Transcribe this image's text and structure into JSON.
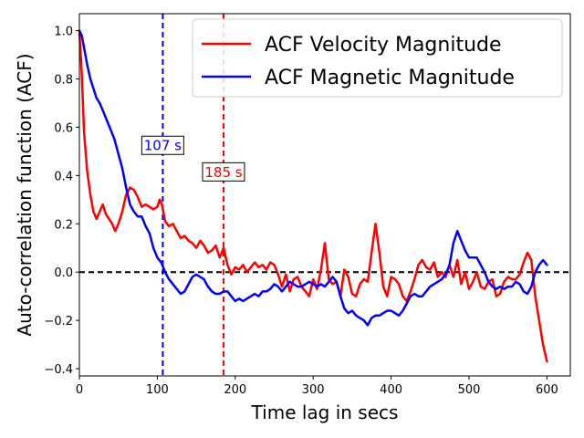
{
  "chart_data": {
    "type": "line",
    "xlabel": "Time lag in secs",
    "ylabel": "Auto-correlation function (ACF)",
    "xlim": [
      0,
      630
    ],
    "ylim": [
      -0.43,
      1.07
    ],
    "x_ticks": [
      0,
      100,
      200,
      300,
      400,
      500,
      600
    ],
    "y_ticks": [
      -0.4,
      -0.2,
      0.0,
      0.2,
      0.4,
      0.6,
      0.8,
      1.0
    ],
    "x_tick_labels": [
      "0",
      "100",
      "200",
      "300",
      "400",
      "500",
      "600"
    ],
    "y_tick_labels": [
      "−0.4",
      "−0.2",
      "0.0",
      "0.2",
      "0.4",
      "0.6",
      "0.8",
      "1.0"
    ],
    "legend_position": "top-right",
    "series": [
      {
        "name": "ACF Velocity Magnitude",
        "color": "#ff0000",
        "x": [
          0,
          3,
          6,
          10,
          14,
          18,
          22,
          26,
          30,
          34,
          38,
          42,
          46,
          50,
          55,
          60,
          65,
          70,
          75,
          80,
          85,
          90,
          95,
          100,
          103,
          106,
          110,
          115,
          120,
          125,
          130,
          135,
          140,
          145,
          150,
          155,
          160,
          165,
          170,
          175,
          180,
          185,
          190,
          195,
          200,
          205,
          210,
          215,
          220,
          225,
          230,
          235,
          240,
          245,
          250,
          255,
          260,
          265,
          270,
          275,
          280,
          285,
          290,
          295,
          300,
          305,
          310,
          315,
          320,
          325,
          330,
          335,
          340,
          345,
          350,
          355,
          360,
          365,
          370,
          375,
          380,
          385,
          390,
          395,
          400,
          405,
          410,
          415,
          420,
          425,
          430,
          435,
          440,
          445,
          450,
          455,
          460,
          465,
          470,
          475,
          480,
          485,
          490,
          495,
          500,
          505,
          510,
          515,
          520,
          525,
          530,
          535,
          540,
          545,
          550,
          555,
          560,
          565,
          570,
          575,
          580,
          585,
          590,
          595,
          600
        ],
        "values": [
          1.0,
          0.82,
          0.58,
          0.42,
          0.32,
          0.25,
          0.22,
          0.25,
          0.28,
          0.24,
          0.22,
          0.2,
          0.17,
          0.2,
          0.25,
          0.32,
          0.35,
          0.34,
          0.31,
          0.27,
          0.28,
          0.27,
          0.26,
          0.27,
          0.3,
          0.28,
          0.21,
          0.19,
          0.2,
          0.17,
          0.14,
          0.15,
          0.13,
          0.12,
          0.1,
          0.13,
          0.11,
          0.08,
          0.09,
          0.11,
          0.06,
          0.1,
          0.03,
          -0.01,
          0.02,
          0.01,
          0.03,
          0.0,
          0.02,
          0.04,
          0.02,
          0.03,
          0.01,
          0.04,
          0.03,
          -0.01,
          -0.06,
          -0.01,
          -0.08,
          -0.03,
          -0.02,
          -0.06,
          -0.08,
          -0.1,
          -0.03,
          -0.07,
          0.01,
          0.12,
          -0.03,
          -0.05,
          -0.04,
          -0.1,
          0.01,
          -0.02,
          -0.09,
          -0.1,
          -0.05,
          -0.03,
          -0.04,
          0.08,
          0.2,
          0.08,
          -0.06,
          -0.1,
          -0.02,
          -0.03,
          -0.05,
          -0.1,
          -0.12,
          -0.08,
          -0.03,
          0.03,
          0.05,
          0.02,
          0.01,
          0.04,
          -0.02,
          0.0,
          -0.02,
          0.03,
          -0.02,
          0.05,
          -0.05,
          0.0,
          -0.07,
          -0.04,
          0.0,
          -0.06,
          -0.07,
          -0.04,
          -0.03,
          -0.1,
          -0.09,
          -0.04,
          -0.02,
          -0.03,
          -0.03,
          -0.01,
          0.04,
          0.08,
          0.05,
          -0.1,
          -0.2,
          -0.3,
          -0.37
        ],
        "x_end_label": ""
      },
      {
        "name": "ACF Magnetic Magnitude",
        "color": "#0000ff",
        "x": [
          0,
          3,
          6,
          10,
          14,
          18,
          22,
          26,
          30,
          35,
          40,
          45,
          50,
          55,
          60,
          65,
          70,
          75,
          80,
          85,
          90,
          95,
          100,
          105,
          110,
          115,
          120,
          125,
          130,
          135,
          140,
          145,
          150,
          155,
          160,
          165,
          170,
          175,
          180,
          185,
          190,
          195,
          200,
          205,
          210,
          215,
          220,
          225,
          230,
          235,
          240,
          245,
          250,
          255,
          260,
          265,
          270,
          275,
          280,
          285,
          290,
          295,
          300,
          305,
          310,
          315,
          320,
          325,
          330,
          335,
          340,
          345,
          350,
          355,
          360,
          365,
          370,
          375,
          380,
          385,
          390,
          395,
          400,
          405,
          410,
          415,
          420,
          425,
          430,
          435,
          440,
          445,
          450,
          455,
          460,
          465,
          470,
          475,
          480,
          485,
          490,
          495,
          500,
          505,
          510,
          515,
          520,
          525,
          530,
          535,
          540,
          545,
          550,
          555,
          560,
          565,
          570,
          575,
          580,
          585,
          590,
          595,
          600
        ],
        "values": [
          1.0,
          0.98,
          0.93,
          0.86,
          0.8,
          0.76,
          0.72,
          0.7,
          0.67,
          0.63,
          0.59,
          0.55,
          0.49,
          0.43,
          0.35,
          0.28,
          0.25,
          0.23,
          0.23,
          0.19,
          0.16,
          0.1,
          0.06,
          0.04,
          0.0,
          -0.03,
          -0.05,
          -0.07,
          -0.09,
          -0.08,
          -0.05,
          -0.02,
          -0.01,
          -0.02,
          -0.03,
          -0.06,
          -0.08,
          -0.09,
          -0.09,
          -0.08,
          -0.08,
          -0.1,
          -0.12,
          -0.11,
          -0.12,
          -0.11,
          -0.1,
          -0.09,
          -0.1,
          -0.08,
          -0.08,
          -0.07,
          -0.05,
          -0.06,
          -0.08,
          -0.06,
          -0.04,
          -0.05,
          -0.06,
          -0.06,
          -0.05,
          -0.04,
          -0.05,
          -0.06,
          -0.05,
          -0.06,
          -0.04,
          -0.02,
          -0.04,
          -0.1,
          -0.15,
          -0.17,
          -0.16,
          -0.18,
          -0.19,
          -0.2,
          -0.22,
          -0.19,
          -0.18,
          -0.18,
          -0.17,
          -0.16,
          -0.16,
          -0.17,
          -0.18,
          -0.16,
          -0.13,
          -0.1,
          -0.09,
          -0.1,
          -0.1,
          -0.08,
          -0.06,
          -0.05,
          -0.04,
          -0.03,
          -0.01,
          0.03,
          0.12,
          0.17,
          0.13,
          0.09,
          0.06,
          0.06,
          0.06,
          0.03,
          0.0,
          -0.04,
          -0.06,
          -0.07,
          -0.06,
          -0.07,
          -0.06,
          -0.06,
          -0.04,
          -0.05,
          -0.08,
          -0.09,
          -0.06,
          0.0,
          0.03,
          0.05,
          0.03
        ],
        "x_end_label": ""
      }
    ],
    "reference_lines": [
      {
        "kind": "vertical",
        "x": 107,
        "color": "#0000ff",
        "style": "dashed",
        "label": "107 s"
      },
      {
        "kind": "vertical",
        "x": 185,
        "color": "#ff0000",
        "style": "dashed",
        "label": "185 s"
      },
      {
        "kind": "horizontal",
        "y": 0.0,
        "color": "#000000",
        "style": "dashed",
        "label": ""
      }
    ],
    "annotations": [
      {
        "text": "107 s",
        "color": "#0000ff",
        "x": 107,
        "y": 0.525
      },
      {
        "text": "185 s",
        "color": "#ff0000",
        "x": 185,
        "y": 0.415
      }
    ]
  }
}
